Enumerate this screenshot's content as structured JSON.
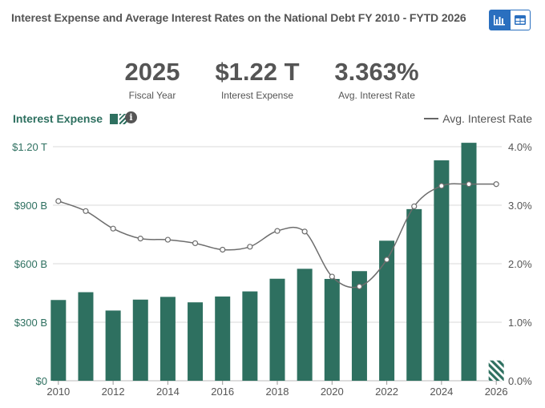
{
  "title": "Interest Expense and Average Interest Rates on the National Debt FY 2010 - FYTD 2026",
  "view_toggle": {
    "chart_icon": "bar-chart-icon",
    "table_icon": "table-icon"
  },
  "stats": [
    {
      "value": "2025",
      "label": "Fiscal Year"
    },
    {
      "value": "$1.22 T",
      "label": "Interest Expense"
    },
    {
      "value": "3.363%",
      "label": "Avg. Interest Rate"
    }
  ],
  "legend": {
    "expense_label": "Interest Expense",
    "rate_label": "Avg. Interest Rate",
    "info_icon": "info-icon"
  },
  "colors": {
    "bar": "#2e7060",
    "line": "#6d6d6d",
    "grid": "#d9d9d9",
    "left_axis": "#2e7060",
    "right_axis": "#555555"
  },
  "chart_data": {
    "type": "bar",
    "x": [
      2010,
      2011,
      2012,
      2013,
      2014,
      2015,
      2016,
      2017,
      2018,
      2019,
      2020,
      2021,
      2022,
      2023,
      2024,
      2025,
      2026
    ],
    "xlim": [
      2009.8,
      2026.2
    ],
    "x_ticks": [
      2010,
      2012,
      2014,
      2016,
      2018,
      2020,
      2022,
      2024,
      2026
    ],
    "grid": true,
    "series": [
      {
        "name": "Interest Expense",
        "axis": "left",
        "unit": "$B",
        "values": [
          414,
          454,
          360,
          416,
          430,
          402,
          432,
          458,
          523,
          574,
          522,
          562,
          718,
          880,
          1130,
          1220,
          104
        ],
        "partial_last": true
      },
      {
        "name": "Avg. Interest Rate",
        "axis": "left-right",
        "type": "line",
        "unit": "%",
        "values": [
          3.07,
          2.9,
          2.6,
          2.43,
          2.41,
          2.35,
          2.24,
          2.29,
          2.56,
          2.55,
          1.78,
          1.61,
          2.07,
          2.98,
          3.33,
          3.36,
          3.36
        ]
      }
    ],
    "left_axis": {
      "ylim": [
        0,
        1200
      ],
      "ticks": [
        0,
        300,
        600,
        900,
        1200
      ],
      "tick_labels": [
        "$0",
        "$300 B",
        "$600 B",
        "$900 B",
        "$1.20 T"
      ]
    },
    "right_axis": {
      "ylim": [
        0,
        4.0
      ],
      "ticks": [
        0,
        1,
        2,
        3,
        4
      ],
      "tick_labels": [
        "0.0%",
        "1.0%",
        "2.0%",
        "3.0%",
        "4.0%"
      ]
    }
  }
}
